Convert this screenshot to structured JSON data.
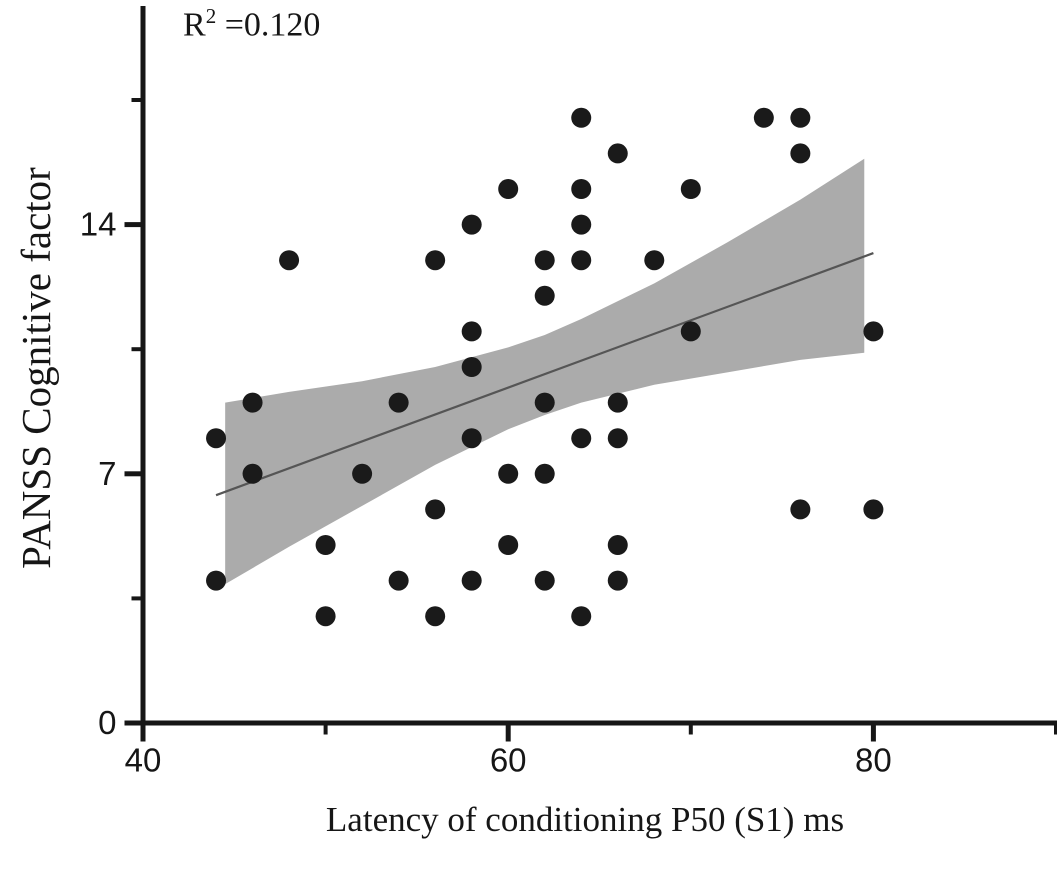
{
  "chart_data": {
    "type": "scatter",
    "annotation": {
      "base": "R",
      "sup": "2",
      "value": " =0.120"
    },
    "xlabel": "Latency of conditioning P50 (S1) ms",
    "ylabel": "PANSS Cognitive factor",
    "xlim": [
      40,
      90
    ],
    "ylim": [
      0,
      20.2
    ],
    "x_ticks_major": [
      40,
      60,
      80
    ],
    "x_ticks_minor": [
      50,
      70,
      90
    ],
    "y_ticks_major": [
      0,
      7,
      14
    ],
    "y_ticks_minor": [
      3.5,
      10.5,
      17.5
    ],
    "grid": false,
    "legend": "none",
    "points": [
      [
        44,
        8
      ],
      [
        44,
        4
      ],
      [
        46,
        9
      ],
      [
        46,
        7
      ],
      [
        48,
        13
      ],
      [
        50,
        5
      ],
      [
        50,
        3
      ],
      [
        52,
        7
      ],
      [
        54,
        9
      ],
      [
        54,
        4
      ],
      [
        56,
        13
      ],
      [
        56,
        6
      ],
      [
        56,
        3
      ],
      [
        58,
        14
      ],
      [
        58,
        11
      ],
      [
        58,
        10
      ],
      [
        58,
        8
      ],
      [
        58,
        4
      ],
      [
        60,
        15
      ],
      [
        60,
        7
      ],
      [
        60,
        5
      ],
      [
        62,
        13
      ],
      [
        62,
        12
      ],
      [
        62,
        9
      ],
      [
        62,
        7
      ],
      [
        62,
        4
      ],
      [
        64,
        17
      ],
      [
        64,
        15
      ],
      [
        64,
        14
      ],
      [
        64,
        13
      ],
      [
        64,
        8
      ],
      [
        64,
        3
      ],
      [
        66,
        16
      ],
      [
        66,
        9
      ],
      [
        66,
        8
      ],
      [
        66,
        5
      ],
      [
        66,
        4
      ],
      [
        68,
        13
      ],
      [
        70,
        15
      ],
      [
        70,
        11
      ],
      [
        74,
        17
      ],
      [
        76,
        17
      ],
      [
        76,
        16
      ],
      [
        76,
        6
      ],
      [
        80,
        11
      ],
      [
        80,
        6
      ]
    ],
    "regression_line": {
      "x": [
        44,
        80
      ],
      "y": [
        6.4,
        13.2
      ]
    },
    "confidence_band": {
      "x": [
        44.5,
        48,
        52,
        56,
        60,
        62,
        64,
        68,
        72,
        76,
        79.5
      ],
      "upper": [
        9.0,
        9.3,
        9.6,
        10.0,
        10.55,
        10.9,
        11.35,
        12.35,
        13.5,
        14.7,
        15.85
      ],
      "lower": [
        3.9,
        4.95,
        6.1,
        7.25,
        8.25,
        8.65,
        9.0,
        9.5,
        9.85,
        10.2,
        10.4
      ]
    },
    "colors": {
      "point": "#1a1a1a",
      "band": "#ababab",
      "line": "#555555",
      "axis": "#161616",
      "background": "#ffffff"
    },
    "marker_radius_px": 10
  }
}
